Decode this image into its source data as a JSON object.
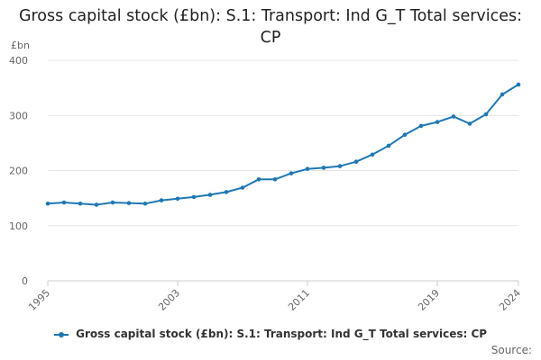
{
  "chart_data": {
    "type": "line",
    "title": "Gross capital stock (£bn): S.1: Transport: Ind G_T Total services: CP",
    "ylabel": "£bn",
    "xlabel": "",
    "ylim": [
      0,
      400
    ],
    "yticks": [
      0,
      100,
      200,
      300,
      400
    ],
    "xlim": [
      1995,
      2024
    ],
    "xticks": [
      1995,
      2003,
      2011,
      2019,
      2024
    ],
    "grid": true,
    "legend": "bottom",
    "series": [
      {
        "name": "Gross capital stock (£bn): S.1: Transport: Ind G_T Total services: CP",
        "color": "#1f78b4",
        "x": [
          1995,
          1996,
          1997,
          1998,
          1999,
          2000,
          2001,
          2002,
          2003,
          2004,
          2005,
          2006,
          2007,
          2008,
          2009,
          2010,
          2011,
          2012,
          2013,
          2014,
          2015,
          2016,
          2017,
          2018,
          2019,
          2020,
          2021,
          2022,
          2023,
          2024
        ],
        "values": [
          140,
          142,
          140,
          138,
          142,
          141,
          140,
          146,
          149,
          152,
          156,
          161,
          169,
          184,
          184,
          195,
          203,
          205,
          208,
          216,
          229,
          245,
          265,
          281,
          288,
          298,
          285,
          302,
          338,
          356
        ]
      }
    ]
  },
  "source_label": "Source:"
}
